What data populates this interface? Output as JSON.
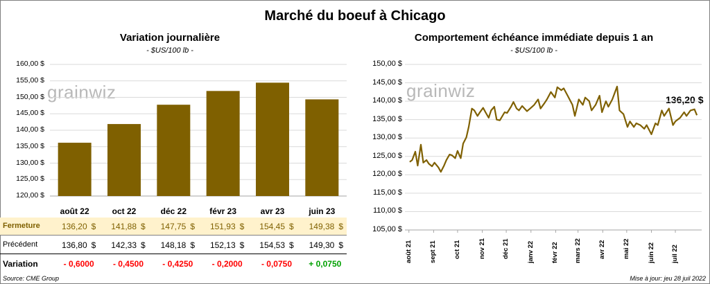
{
  "main_title": "Marché du boeuf à Chicago",
  "watermark": "grainwiz",
  "left": {
    "title": "Variation  journalière",
    "unit": "- $US/100 lb -",
    "y_ticks": [
      "160,00 $",
      "155,00 $",
      "150,00 $",
      "145,00 $",
      "140,00 $",
      "135,00 $",
      "130,00 $",
      "125,00 $",
      "120,00 $"
    ],
    "rows": {
      "fermeture_label": "Fermeture",
      "precedent_label": "Précédent",
      "variation_label": "Variation"
    },
    "dollar_sign": "$",
    "bar_color": "#7f6000",
    "fermeture_bg": "#fff2cc",
    "negative_color": "#ff0000",
    "positive_color": "#00a000"
  },
  "right": {
    "title": "Comportement  échéance immédiate depuis 1 an",
    "unit": "- $US/100 lb -",
    "y_ticks": [
      "150,00 $",
      "145,00 $",
      "140,00 $",
      "135,00 $",
      "130,00 $",
      "125,00 $",
      "120,00 $",
      "115,00 $",
      "110,00 $",
      "105,00 $"
    ],
    "x_ticks": [
      "août 21",
      "sept 21",
      "oct 21",
      "nov 21",
      "déc 21",
      "janv 22",
      "févr 22",
      "mars 22",
      "avr 22",
      "mai 22",
      "juin 22",
      "juil 22"
    ],
    "last_value_label": "136,20 $",
    "line_color": "#7f6000"
  },
  "chart_data": [
    {
      "type": "bar",
      "title": "Variation  journalière",
      "ylabel": "- $US/100 lb -",
      "ylim": [
        120,
        160
      ],
      "categories": [
        "août 22",
        "oct 22",
        "déc 22",
        "févr 23",
        "avr 23",
        "juin 23"
      ],
      "values": [
        136.2,
        141.88,
        147.75,
        151.93,
        154.45,
        149.38
      ],
      "table": {
        "fermeture": [
          "136,20",
          "141,88",
          "147,75",
          "151,93",
          "154,45",
          "149,38"
        ],
        "precedent": [
          "136,80",
          "142,33",
          "148,18",
          "152,13",
          "154,53",
          "149,30"
        ],
        "variation": [
          "- 0,6000",
          "- 0,4500",
          "- 0,4250",
          "- 0,2000",
          "- 0,0750",
          "+ 0,0750"
        ],
        "variation_values": [
          -0.6,
          -0.45,
          -0.425,
          -0.2,
          -0.075,
          0.075
        ]
      }
    },
    {
      "type": "line",
      "title": "Comportement  échéance immédiate depuis 1 an",
      "ylabel": "- $US/100 lb -",
      "ylim": [
        105,
        150
      ],
      "x": [
        "2021-08-02",
        "2021-08-05",
        "2021-08-09",
        "2021-08-12",
        "2021-08-16",
        "2021-08-19",
        "2021-08-23",
        "2021-08-26",
        "2021-08-30",
        "2021-09-02",
        "2021-09-07",
        "2021-09-10",
        "2021-09-14",
        "2021-09-17",
        "2021-09-21",
        "2021-09-24",
        "2021-09-28",
        "2021-10-01",
        "2021-10-05",
        "2021-10-08",
        "2021-10-12",
        "2021-10-15",
        "2021-10-19",
        "2021-10-22",
        "2021-10-26",
        "2021-10-29",
        "2021-11-02",
        "2021-11-05",
        "2021-11-09",
        "2021-11-12",
        "2021-11-16",
        "2021-11-19",
        "2021-11-23",
        "2021-11-29",
        "2021-12-02",
        "2021-12-07",
        "2021-12-10",
        "2021-12-14",
        "2021-12-17",
        "2021-12-21",
        "2021-12-27",
        "2021-12-31",
        "2022-01-05",
        "2022-01-10",
        "2022-01-13",
        "2022-01-18",
        "2022-01-21",
        "2022-01-26",
        "2022-01-31",
        "2022-02-03",
        "2022-02-08",
        "2022-02-11",
        "2022-02-16",
        "2022-02-22",
        "2022-02-25",
        "2022-03-02",
        "2022-03-07",
        "2022-03-10",
        "2022-03-15",
        "2022-03-18",
        "2022-03-23",
        "2022-03-28",
        "2022-03-31",
        "2022-04-05",
        "2022-04-08",
        "2022-04-13",
        "2022-04-19",
        "2022-04-22",
        "2022-04-27",
        "2022-05-02",
        "2022-05-05",
        "2022-05-10",
        "2022-05-13",
        "2022-05-18",
        "2022-05-23",
        "2022-05-26",
        "2022-06-01",
        "2022-06-06",
        "2022-06-09",
        "2022-06-14",
        "2022-06-17",
        "2022-06-23",
        "2022-06-28",
        "2022-07-01",
        "2022-07-07",
        "2022-07-12",
        "2022-07-15",
        "2022-07-20",
        "2022-07-25",
        "2022-07-28"
      ],
      "y": [
        123.5,
        124.0,
        126.3,
        122.5,
        128.2,
        123.3,
        124.0,
        123.0,
        122.3,
        123.3,
        122.0,
        120.8,
        122.5,
        124.0,
        125.5,
        125.3,
        124.5,
        126.5,
        124.5,
        128.5,
        130.2,
        133.0,
        138.0,
        137.5,
        136.0,
        137.0,
        138.2,
        137.0,
        135.5,
        137.5,
        138.5,
        135.0,
        134.8,
        137.0,
        136.8,
        138.5,
        139.8,
        138.0,
        137.5,
        138.7,
        137.3,
        138.0,
        139.0,
        140.5,
        138.0,
        139.5,
        140.5,
        142.5,
        141.0,
        143.8,
        143.0,
        143.5,
        141.5,
        139.0,
        136.0,
        140.5,
        139.0,
        141.0,
        140.0,
        137.5,
        139.0,
        141.5,
        137.0,
        140.0,
        138.5,
        140.5,
        144.0,
        137.5,
        136.5,
        133.0,
        134.5,
        133.0,
        134.0,
        133.5,
        132.5,
        133.5,
        131.0,
        134.0,
        133.5,
        137.5,
        136.0,
        138.0,
        133.5,
        134.5,
        135.5,
        137.0,
        136.0,
        137.5,
        137.8,
        136.2
      ],
      "last_value_label": "136,20 $"
    }
  ],
  "footer": {
    "source": "Source: CME Group",
    "updated": "Mise à jour: jeu 28 juil 2022"
  }
}
